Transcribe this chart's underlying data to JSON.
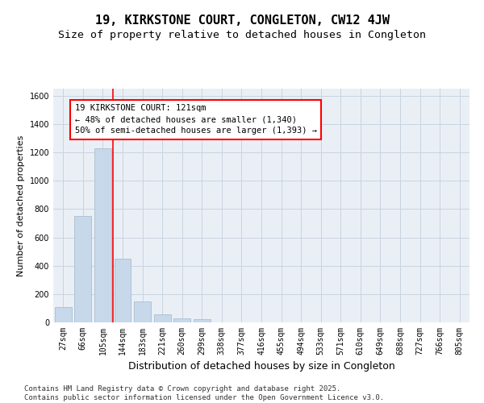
{
  "title": "19, KIRKSTONE COURT, CONGLETON, CW12 4JW",
  "subtitle": "Size of property relative to detached houses in Congleton",
  "xlabel": "Distribution of detached houses by size in Congleton",
  "ylabel": "Number of detached properties",
  "categories": [
    "27sqm",
    "66sqm",
    "105sqm",
    "144sqm",
    "183sqm",
    "221sqm",
    "260sqm",
    "299sqm",
    "338sqm",
    "377sqm",
    "416sqm",
    "455sqm",
    "494sqm",
    "533sqm",
    "571sqm",
    "610sqm",
    "649sqm",
    "688sqm",
    "727sqm",
    "766sqm",
    "805sqm"
  ],
  "bar_heights": [
    110,
    750,
    1230,
    450,
    150,
    55,
    30,
    20,
    0,
    0,
    0,
    0,
    0,
    0,
    0,
    0,
    0,
    0,
    0,
    0,
    0
  ],
  "bar_color": "#c8d8eb",
  "bar_edge_color": "#a8bfcf",
  "ylim": [
    0,
    1650
  ],
  "yticks": [
    0,
    200,
    400,
    600,
    800,
    1000,
    1200,
    1400,
    1600
  ],
  "grid_color": "#c8d4e0",
  "background_color": "#eaeff6",
  "annotation_line1": "19 KIRKSTONE COURT: 121sqm",
  "annotation_line2": "← 48% of detached houses are smaller (1,340)",
  "annotation_line3": "50% of semi-detached houses are larger (1,393) →",
  "red_line_x": 2.5,
  "footer_line1": "Contains HM Land Registry data © Crown copyright and database right 2025.",
  "footer_line2": "Contains public sector information licensed under the Open Government Licence v3.0.",
  "title_fontsize": 11,
  "subtitle_fontsize": 9.5,
  "xlabel_fontsize": 9,
  "ylabel_fontsize": 8,
  "tick_fontsize": 7,
  "annotation_fontsize": 7.5,
  "footer_fontsize": 6.5
}
